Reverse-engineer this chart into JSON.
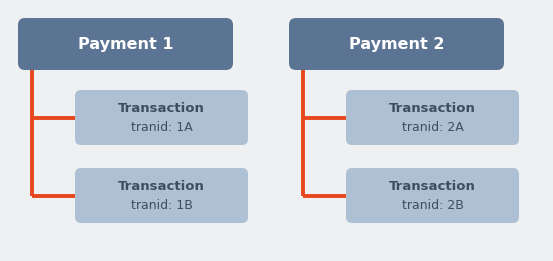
{
  "background_color": "#eef0f2",
  "payment_box_color": "#5c7494",
  "transaction_box_color": "#adc0d4",
  "connector_color": "#e8471e",
  "text_color_payment": "#ffffff",
  "text_color_transaction": "#3d4f60",
  "payments": [
    {
      "label": "Payment 1",
      "transactions": [
        {
          "label": "Transaction",
          "sublabel": "tranid: 1A"
        },
        {
          "label": "Transaction",
          "sublabel": "tranid: 1B"
        }
      ]
    },
    {
      "label": "Payment 2",
      "transactions": [
        {
          "label": "Transaction",
          "sublabel": "tranid: 2A"
        },
        {
          "label": "Transaction",
          "sublabel": "tranid: 2B"
        }
      ]
    }
  ],
  "connector_linewidth": 2.8
}
